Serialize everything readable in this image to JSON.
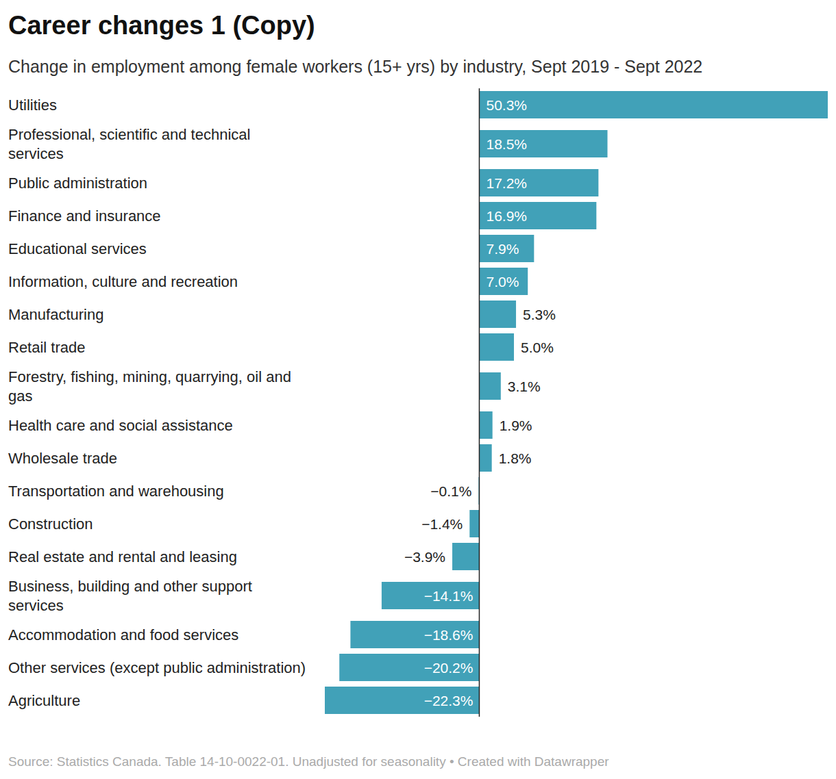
{
  "chart_data": {
    "type": "bar",
    "orientation": "horizontal",
    "title": "Career changes 1 (Copy)",
    "subtitle": "Change in employment among female workers (15+ yrs) by industry, Sept 2019 - Sept 2022",
    "source": "Source: Statistics Canada. Table 14-10-0022-01. Unadjusted for seasonality • Created with Datawrapper",
    "categories": [
      "Utilities",
      "Professional, scientific and technical services",
      "Public administration",
      "Finance and insurance",
      "Educational services",
      "Information, culture and recreation",
      "Manufacturing",
      "Retail trade",
      "Forestry, fishing, mining, quarrying, oil and gas",
      "Health care and social assistance",
      "Wholesale trade",
      "Transportation and warehousing",
      "Construction",
      "Real estate and rental and leasing",
      "Business, building and other support services",
      "Accommodation and food services",
      "Other services (except public administration)",
      "Agriculture"
    ],
    "values": [
      50.3,
      18.5,
      17.2,
      16.9,
      7.9,
      7.0,
      5.3,
      5.0,
      3.1,
      1.9,
      1.8,
      -0.1,
      -1.4,
      -3.9,
      -14.1,
      -18.6,
      -20.2,
      -22.3
    ],
    "value_labels": [
      "50.3%",
      "18.5%",
      "17.2%",
      "16.9%",
      "7.9%",
      "7.0%",
      "5.3%",
      "5.0%",
      "3.1%",
      "1.9%",
      "1.8%",
      "−0.1%",
      "−1.4%",
      "−3.9%",
      "−14.1%",
      "−18.6%",
      "−20.2%",
      "−22.3%"
    ],
    "color": "#41a1b8",
    "xlim": [
      -22.3,
      50.3
    ],
    "data_labels": true,
    "tick_labels": false,
    "grid": false
  }
}
